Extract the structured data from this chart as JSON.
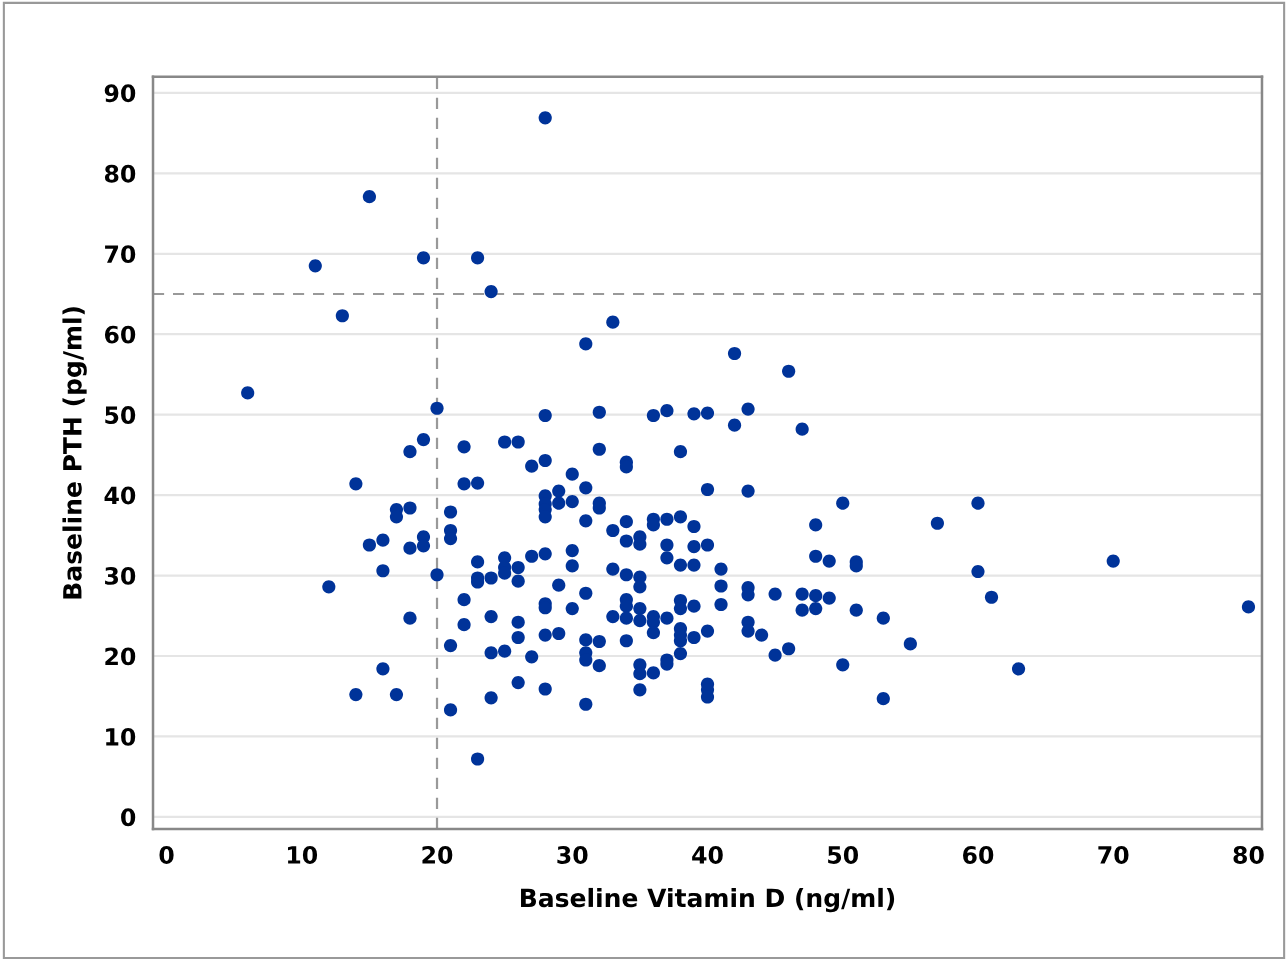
{
  "chart_data": {
    "type": "scatter",
    "xlabel": "Baseline Vitamin D (ng/ml)",
    "ylabel": "Baseline PTH (pg/ml)",
    "xlim": [
      -1,
      81
    ],
    "ylim": [
      -1.5,
      92
    ],
    "xticks": [
      0,
      10,
      20,
      30,
      40,
      50,
      60,
      70,
      80
    ],
    "yticks": [
      0,
      10,
      20,
      30,
      40,
      50,
      60,
      70,
      80,
      90
    ],
    "grid": "y",
    "marker": "circle",
    "ref_lines": [
      {
        "axis": "x",
        "value": 20,
        "color": "#999999",
        "line_style": "dashed"
      },
      {
        "axis": "y",
        "value": 65,
        "color": "#999999",
        "line_style": "dashed"
      }
    ],
    "series": [
      {
        "color": "#003399",
        "x": [
          6,
          11,
          12,
          13,
          14,
          14,
          15,
          15,
          16,
          16,
          16,
          17,
          17,
          17,
          18,
          18,
          18,
          18,
          19,
          19,
          19,
          19,
          20,
          20,
          21,
          21,
          21,
          21,
          21,
          22,
          22,
          22,
          22,
          23,
          23,
          23,
          23,
          23,
          23,
          24,
          24,
          24,
          24,
          24,
          25,
          25,
          25,
          25,
          25,
          26,
          26,
          26,
          26,
          26,
          26,
          27,
          27,
          27,
          28,
          28,
          28,
          28,
          28,
          28,
          28,
          28,
          28,
          28,
          28,
          28,
          29,
          29,
          29,
          29,
          30,
          30,
          30,
          30,
          30,
          31,
          31,
          31,
          31,
          31,
          31,
          31,
          31,
          32,
          32,
          32,
          32,
          32,
          32,
          33,
          33,
          33,
          33,
          34,
          34,
          34,
          34,
          34,
          34,
          34,
          34,
          34,
          35,
          35,
          35,
          35,
          35,
          35,
          35,
          35,
          35,
          36,
          36,
          36,
          36,
          36,
          36,
          36,
          37,
          37,
          37,
          37,
          37,
          37,
          37,
          38,
          38,
          38,
          38,
          38,
          38,
          38,
          38,
          38,
          39,
          39,
          39,
          39,
          39,
          39,
          40,
          40,
          40,
          40,
          40,
          40,
          40,
          41,
          41,
          41,
          42,
          42,
          43,
          43,
          43,
          43,
          43,
          43,
          44,
          45,
          45,
          46,
          46,
          47,
          47,
          47,
          48,
          48,
          48,
          48,
          49,
          49,
          50,
          50,
          51,
          51,
          51,
          53,
          53,
          55,
          57,
          60,
          60,
          61,
          63,
          70,
          80
        ],
        "values": [
          52.7,
          68.5,
          28.6,
          62.3,
          41.4,
          15.2,
          77.1,
          33.8,
          34.4,
          30.6,
          18.4,
          38.2,
          37.3,
          15.2,
          45.4,
          38.4,
          33.4,
          24.7,
          69.5,
          46.9,
          34.8,
          33.7,
          50.8,
          30.1,
          37.9,
          35.6,
          34.6,
          21.3,
          13.3,
          46.0,
          41.4,
          27.0,
          23.9,
          69.5,
          41.5,
          31.7,
          29.7,
          29.2,
          7.2,
          65.3,
          29.7,
          24.9,
          20.4,
          14.8,
          46.6,
          32.2,
          31.0,
          30.3,
          20.6,
          46.6,
          31.0,
          29.3,
          24.2,
          22.3,
          16.7,
          43.6,
          32.4,
          19.9,
          86.9,
          49.9,
          44.3,
          39.9,
          38.9,
          38.2,
          37.3,
          32.7,
          26.5,
          26.0,
          22.6,
          15.9,
          40.5,
          39.0,
          28.8,
          22.8,
          42.6,
          39.2,
          33.1,
          31.2,
          25.9,
          58.8,
          40.9,
          36.8,
          27.8,
          22.0,
          20.4,
          19.5,
          14.0,
          50.3,
          45.7,
          39.0,
          38.4,
          21.8,
          18.8,
          61.5,
          35.6,
          30.8,
          24.9,
          44.1,
          43.5,
          36.7,
          34.3,
          30.1,
          27.0,
          26.2,
          24.7,
          21.9,
          34.8,
          33.9,
          29.8,
          28.6,
          25.9,
          24.4,
          18.9,
          17.8,
          15.8,
          49.9,
          37.0,
          36.3,
          24.9,
          24.2,
          22.9,
          17.9,
          50.5,
          37.0,
          33.8,
          32.2,
          24.7,
          19.5,
          19.0,
          45.4,
          37.3,
          31.3,
          26.9,
          25.9,
          23.4,
          22.6,
          21.9,
          20.3,
          50.1,
          36.1,
          33.6,
          31.3,
          26.2,
          22.3,
          50.2,
          40.7,
          33.8,
          23.1,
          16.5,
          15.8,
          14.9,
          30.8,
          28.7,
          26.4,
          57.6,
          48.7,
          50.7,
          40.5,
          28.5,
          27.6,
          24.2,
          23.1,
          22.6,
          27.7,
          20.1,
          55.4,
          20.9,
          48.2,
          27.7,
          25.7,
          36.3,
          32.4,
          27.5,
          25.9,
          31.8,
          27.2,
          39.0,
          18.9,
          31.7,
          31.2,
          25.7,
          24.7,
          14.7,
          21.5,
          36.5,
          39.0,
          30.5,
          27.3,
          18.4,
          31.8,
          26.1
        ]
      }
    ]
  }
}
